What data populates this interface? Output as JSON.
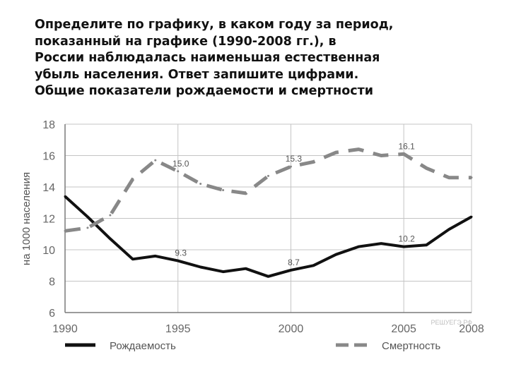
{
  "question": {
    "lines": [
      "Определите по графику, в каком году за период,",
      "показанный на графике (1990-2008 гг.), в",
      "России наблюдалась наименьшая естественная",
      "убыль населения. Ответ запишите цифрами.",
      "Общие показатели рождаемости и смертности"
    ]
  },
  "watermark": "РЕШУЕГЭ.РФ",
  "chart_data": {
    "type": "line",
    "title": "",
    "xlabel": "",
    "ylabel": "на 1000 населения",
    "xlim": [
      1990,
      2008
    ],
    "ylim": [
      6,
      18
    ],
    "x_ticks": [
      "1990",
      "1995",
      "2000",
      "2005",
      "2008"
    ],
    "y_ticks": [
      "6",
      "8",
      "10",
      "12",
      "14",
      "16",
      "18"
    ],
    "grid": true,
    "legend_position": "bottom",
    "series": [
      {
        "name": "Рождаемость",
        "style": "solid",
        "color": "#111111",
        "x": [
          1990,
          1991,
          1992,
          1993,
          1994,
          1995,
          1996,
          1997,
          1998,
          1999,
          2000,
          2001,
          2002,
          2003,
          2004,
          2005,
          2006,
          2007,
          2008
        ],
        "values": [
          13.4,
          12.1,
          10.7,
          9.4,
          9.6,
          9.3,
          8.9,
          8.6,
          8.8,
          8.3,
          8.7,
          9.0,
          9.7,
          10.2,
          10.4,
          10.2,
          10.3,
          11.3,
          12.1
        ]
      },
      {
        "name": "Смертность",
        "style": "dashed",
        "color": "#888888",
        "x": [
          1990,
          1991,
          1992,
          1993,
          1994,
          1995,
          1996,
          1997,
          1998,
          1999,
          2000,
          2001,
          2002,
          2003,
          2004,
          2005,
          2006,
          2007,
          2008
        ],
        "values": [
          11.2,
          11.4,
          12.2,
          14.5,
          15.7,
          15.0,
          14.2,
          13.8,
          13.6,
          14.7,
          15.3,
          15.6,
          16.2,
          16.4,
          16.0,
          16.1,
          15.2,
          14.6,
          14.6
        ]
      }
    ],
    "annotations": [
      {
        "text": "9.3",
        "x": 1995,
        "y": 9.3
      },
      {
        "text": "8.7",
        "x": 2000,
        "y": 8.7
      },
      {
        "text": "10.2",
        "x": 2005,
        "y": 10.2
      },
      {
        "text": "15.0",
        "x": 1995,
        "y": 15.0
      },
      {
        "text": "15.3",
        "x": 2000,
        "y": 15.3
      },
      {
        "text": "16.1",
        "x": 2005,
        "y": 16.1
      }
    ]
  }
}
